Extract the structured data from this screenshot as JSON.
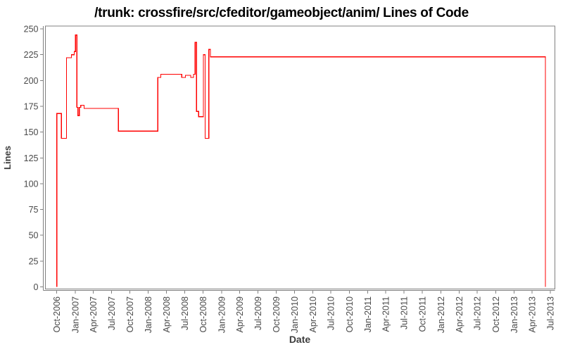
{
  "chart_data": {
    "type": "line",
    "title": "/trunk: crossfire/src/cfeditor/gameobject/anim/ Lines of Code",
    "xlabel": "Date",
    "ylabel": "Lines",
    "ylim": [
      0,
      250
    ],
    "y_ticks": [
      0,
      25,
      50,
      75,
      100,
      125,
      150,
      175,
      200,
      225,
      250
    ],
    "x_ticks": [
      "Oct-2006",
      "Jan-2007",
      "Apr-2007",
      "Jul-2007",
      "Oct-2007",
      "Jan-2008",
      "Apr-2008",
      "Jul-2008",
      "Oct-2008",
      "Jan-2009",
      "Apr-2009",
      "Jul-2009",
      "Oct-2009",
      "Jan-2010",
      "Apr-2010",
      "Jul-2010",
      "Oct-2010",
      "Jan-2011",
      "Apr-2011",
      "Jul-2011",
      "Oct-2011",
      "Jan-2012",
      "Apr-2012",
      "Jul-2012",
      "Oct-2012",
      "Jan-2013",
      "Apr-2013",
      "Jul-2013"
    ],
    "grid": false,
    "legend": "none",
    "line_color": "#ff0000",
    "axis_color": "#808080",
    "tick_label_color": "#4a4a4a",
    "series": [
      {
        "name": "Lines of Code",
        "step": "after",
        "points": [
          [
            "2006-10-01",
            0
          ],
          [
            "2006-10-01",
            168
          ],
          [
            "2006-10-24",
            144
          ],
          [
            "2006-11-18",
            222
          ],
          [
            "2006-12-13",
            225
          ],
          [
            "2006-12-27",
            228
          ],
          [
            "2007-01-02",
            244
          ],
          [
            "2007-01-09",
            174
          ],
          [
            "2007-01-14",
            166
          ],
          [
            "2007-01-21",
            174
          ],
          [
            "2007-01-28",
            176
          ],
          [
            "2007-02-14",
            173
          ],
          [
            "2007-08-05",
            151
          ],
          [
            "2008-02-17",
            203
          ],
          [
            "2008-03-03",
            206
          ],
          [
            "2008-06-16",
            203
          ],
          [
            "2008-07-04",
            205
          ],
          [
            "2008-07-31",
            203
          ],
          [
            "2008-08-14",
            206
          ],
          [
            "2008-08-22",
            237
          ],
          [
            "2008-08-29",
            170
          ],
          [
            "2008-09-08",
            165
          ],
          [
            "2008-10-02",
            225
          ],
          [
            "2008-10-11",
            144
          ],
          [
            "2008-10-29",
            230
          ],
          [
            "2008-11-06",
            223
          ],
          [
            "2013-06-06",
            0
          ]
        ]
      }
    ]
  }
}
